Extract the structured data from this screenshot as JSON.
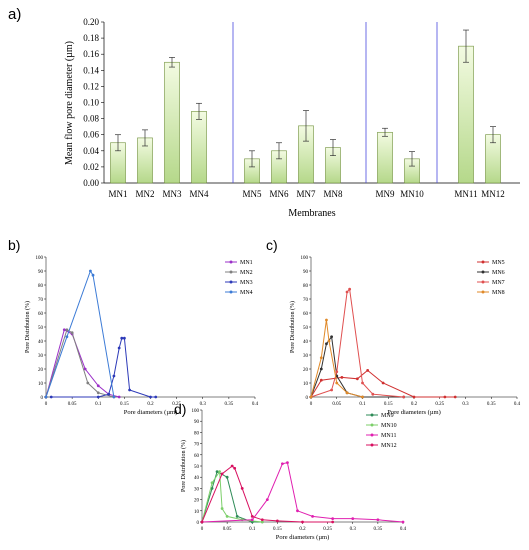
{
  "chart_data": [
    {
      "panel": "a)",
      "type": "bar",
      "categories": [
        "MN1",
        "MN2",
        "MN3",
        "MN4",
        "MN5",
        "MN6",
        "MN7",
        "MN8",
        "MN9",
        "MN10",
        "MN11",
        "MN12"
      ],
      "values": [
        0.05,
        0.056,
        0.15,
        0.089,
        0.03,
        0.04,
        0.071,
        0.044,
        0.063,
        0.03,
        0.17,
        0.06
      ],
      "errors": [
        0.01,
        0.01,
        0.006,
        0.01,
        0.01,
        0.01,
        0.019,
        0.01,
        0.005,
        0.009,
        0.02,
        0.01
      ],
      "groups": [
        [
          0,
          3
        ],
        [
          4,
          7
        ],
        [
          8,
          9
        ],
        [
          10,
          11
        ]
      ],
      "xlabel": "Membranes",
      "ylabel": "Mean flow pore diameter (µm)",
      "ylim": [
        0,
        0.2
      ],
      "yticks": [
        "0.00",
        "0.02",
        "0.04",
        "0.06",
        "0.08",
        "0.10",
        "0.12",
        "0.14",
        "0.16",
        "0.18",
        "0.20"
      ],
      "colors": {
        "bar_top": "#f3fbe2",
        "bar_bottom": "#b5d88a",
        "bar_stroke": "#6f8f3a",
        "separator": "#4a4adf"
      }
    },
    {
      "panel": "b)",
      "type": "line",
      "xlabel": "Pore diameters (µm)",
      "ylabel": "Pore Distribution (%)",
      "xlim": [
        0,
        0.4
      ],
      "ylim": [
        0,
        100
      ],
      "xticks": [
        "0",
        "0.05",
        "0.1",
        "0.15",
        "0.2",
        "0.25",
        "0.3",
        "0.35",
        "0.4"
      ],
      "yticks": [
        "0",
        "10",
        "20",
        "30",
        "40",
        "50",
        "60",
        "70",
        "80",
        "90",
        "100"
      ],
      "legend": "top-right",
      "series": [
        {
          "name": "MN1",
          "color": "#9b30c8",
          "x": [
            0,
            0.035,
            0.05,
            0.075,
            0.1,
            0.12,
            0.14
          ],
          "y": [
            0,
            48,
            45,
            20,
            8,
            2,
            0
          ]
        },
        {
          "name": "MN2",
          "color": "#808080",
          "x": [
            0,
            0.04,
            0.05,
            0.08,
            0.1,
            0.13
          ],
          "y": [
            0,
            48,
            46,
            10,
            3,
            0
          ]
        },
        {
          "name": "MN3",
          "color": "#2d3ab8",
          "x": [
            0.01,
            0.1,
            0.12,
            0.13,
            0.14,
            0.145,
            0.15,
            0.16,
            0.2,
            0.21
          ],
          "y": [
            0,
            0,
            2,
            15,
            35,
            42,
            42,
            5,
            0,
            0
          ]
        },
        {
          "name": "MN4",
          "color": "#3c7bd6",
          "x": [
            0,
            0.04,
            0.085,
            0.09,
            0.13
          ],
          "y": [
            0,
            43,
            90,
            87,
            0
          ]
        }
      ]
    },
    {
      "panel": "c)",
      "type": "line",
      "xlabel": "Pore diameters (µm)",
      "ylabel": "Pore Distribution (%)",
      "xlim": [
        0,
        0.4
      ],
      "ylim": [
        0,
        100
      ],
      "xticks": [
        "0",
        "0.05",
        "0.1",
        "0.15",
        "0.2",
        "0.25",
        "0.3",
        "0.35",
        "0.4"
      ],
      "yticks": [
        "0",
        "10",
        "20",
        "30",
        "40",
        "50",
        "60",
        "70",
        "80",
        "90",
        "100"
      ],
      "legend": "top-right",
      "series": [
        {
          "name": "MN5",
          "color": "#d03030",
          "x": [
            0,
            0.02,
            0.06,
            0.09,
            0.11,
            0.14,
            0.2,
            0.26,
            0.28
          ],
          "y": [
            0,
            12,
            14,
            13,
            19,
            10,
            0,
            0,
            0
          ]
        },
        {
          "name": "MN6",
          "color": "#303030",
          "x": [
            0,
            0.02,
            0.03,
            0.04,
            0.05,
            0.07,
            0.1,
            0.18
          ],
          "y": [
            0,
            20,
            38,
            43,
            15,
            3,
            0,
            0
          ]
        },
        {
          "name": "MN7",
          "color": "#e05050",
          "x": [
            0,
            0.04,
            0.05,
            0.07,
            0.075,
            0.1,
            0.12,
            0.18
          ],
          "y": [
            0,
            5,
            18,
            75,
            77,
            10,
            2,
            0
          ]
        },
        {
          "name": "MN8",
          "color": "#e08a2a",
          "x": [
            0,
            0.02,
            0.03,
            0.035,
            0.05,
            0.07,
            0.1
          ],
          "y": [
            0,
            28,
            55,
            40,
            10,
            3,
            0
          ]
        }
      ]
    },
    {
      "panel": "d)",
      "type": "line",
      "xlabel": "Pore diameters (µm)",
      "ylabel": "Pore Distribution (%)",
      "xlim": [
        0,
        0.4
      ],
      "ylim": [
        0,
        100
      ],
      "xticks": [
        "0",
        "0.05",
        "0.1",
        "0.15",
        "0.2",
        "0.25",
        "0.3",
        "0.35",
        "0.4"
      ],
      "yticks": [
        "0",
        "10",
        "20",
        "30",
        "40",
        "50",
        "60",
        "70",
        "80",
        "90",
        "100"
      ],
      "legend": "top-right",
      "series": [
        {
          "name": "MN9",
          "color": "#2e8b57",
          "x": [
            0,
            0.02,
            0.03,
            0.05,
            0.07,
            0.1,
            0.12
          ],
          "y": [
            0,
            30,
            45,
            40,
            5,
            0,
            0
          ]
        },
        {
          "name": "MN10",
          "color": "#7ccf6a",
          "x": [
            0,
            0.02,
            0.035,
            0.04,
            0.05,
            0.08,
            0.12
          ],
          "y": [
            0,
            35,
            45,
            12,
            5,
            2,
            0
          ]
        },
        {
          "name": "MN11",
          "color": "#e020b0",
          "x": [
            0,
            0.1,
            0.13,
            0.16,
            0.17,
            0.19,
            0.22,
            0.26,
            0.3,
            0.35,
            0.4
          ],
          "y": [
            0,
            2,
            20,
            52,
            53,
            10,
            5,
            3,
            3,
            2,
            0
          ]
        },
        {
          "name": "MN12",
          "color": "#d81060",
          "x": [
            0,
            0.04,
            0.06,
            0.065,
            0.08,
            0.1,
            0.12,
            0.15,
            0.2,
            0.26
          ],
          "y": [
            0,
            43,
            50,
            48,
            30,
            5,
            2,
            1,
            0,
            0
          ]
        }
      ]
    }
  ]
}
